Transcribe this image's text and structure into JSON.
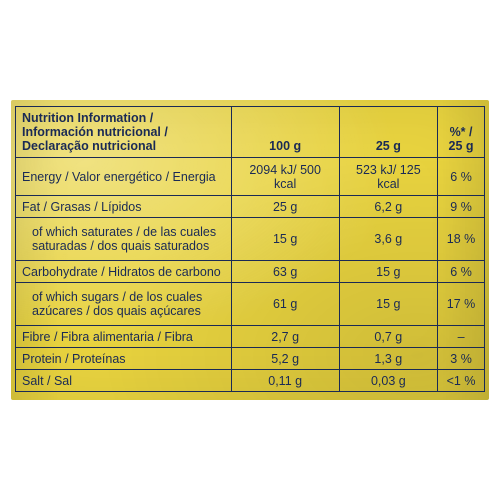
{
  "table": {
    "background_color": "#e8d33f",
    "border_color": "#1a2a55",
    "text_color": "#1a2a55",
    "font_family": "Arial",
    "header": {
      "label": "Nutrition Information / Información nutricional / Declaração nutricional",
      "col_100g": "100 g",
      "col_25g": "25 g",
      "col_pct": "%* / 25 g"
    },
    "rows": [
      {
        "label": "Energy / Valor energético / Energia",
        "v100": "2094 kJ/ 500 kcal",
        "v25": "523 kJ/ 125 kcal",
        "pct": "6 %",
        "indent": false,
        "tall": false
      },
      {
        "label": "Fat / Grasas / Lípidos",
        "v100": "25 g",
        "v25": "6,2 g",
        "pct": "9 %",
        "indent": false,
        "tall": false
      },
      {
        "label": "of which saturates / de las cuales saturadas / dos quais saturados",
        "v100": "15 g",
        "v25": "3,6 g",
        "pct": "18 %",
        "indent": true,
        "tall": true
      },
      {
        "label": "Carbohydrate / Hidratos de carbono",
        "v100": "63 g",
        "v25": "15 g",
        "pct": "6 %",
        "indent": false,
        "tall": false
      },
      {
        "label": "of which sugars / de los cuales azúcares / dos quais açúcares",
        "v100": "61 g",
        "v25": "15 g",
        "pct": "17 %",
        "indent": true,
        "tall": true
      },
      {
        "label": "Fibre / Fibra alimentaria / Fibra",
        "v100": "2,7 g",
        "v25": "0,7 g",
        "pct": "–",
        "indent": false,
        "tall": false
      },
      {
        "label": "Protein / Proteínas",
        "v100": "5,2 g",
        "v25": "1,3 g",
        "pct": "3 %",
        "indent": false,
        "tall": false
      },
      {
        "label": "Salt / Sal",
        "v100": "0,11 g",
        "v25": "0,03 g",
        "pct": "<1 %",
        "indent": false,
        "tall": false
      }
    ]
  }
}
